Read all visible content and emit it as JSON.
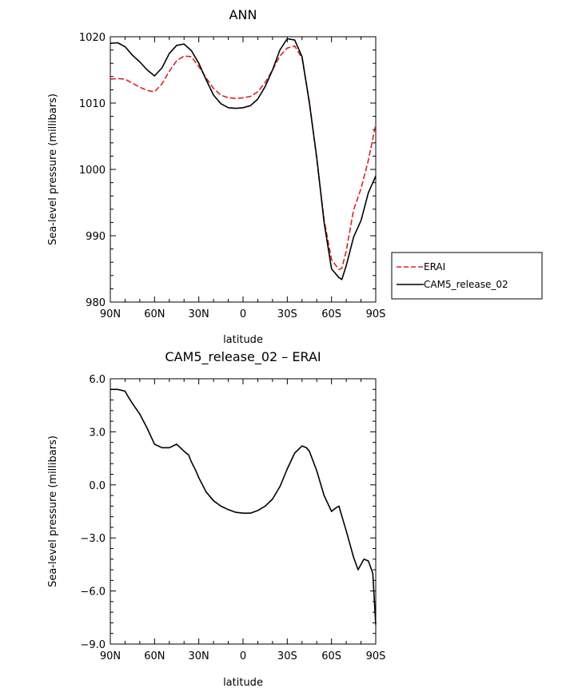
{
  "chart_data": [
    {
      "type": "line",
      "title": "ANN",
      "xlabel": "latitude",
      "ylabel": "Sea-level pressure (millibars)",
      "xlim": [
        90,
        -90
      ],
      "ylim": [
        980,
        1020
      ],
      "x_ticks": [
        90,
        60,
        30,
        0,
        -30,
        -60,
        -90
      ],
      "x_tick_labels": [
        "90N",
        "60N",
        "30N",
        "0",
        "30S",
        "60S",
        "90S"
      ],
      "y_ticks": [
        980,
        990,
        1000,
        1010,
        1020
      ],
      "y_tick_labels": [
        "980",
        "990",
        "1000",
        "1010",
        "1020"
      ],
      "series": [
        {
          "name": "ERAI",
          "color": "#e02020",
          "dashed": true,
          "x": [
            90,
            85,
            80,
            75,
            70,
            65,
            60,
            55,
            50,
            45,
            40,
            35,
            30,
            25,
            20,
            15,
            10,
            5,
            0,
            -5,
            -10,
            -15,
            -20,
            -25,
            -30,
            -35,
            -40,
            -45,
            -50,
            -55,
            -60,
            -65,
            -67,
            -70,
            -75,
            -80,
            -85,
            -90
          ],
          "y": [
            1013.6,
            1013.7,
            1013.6,
            1013.0,
            1012.4,
            1011.9,
            1011.7,
            1012.9,
            1014.8,
            1016.4,
            1017.1,
            1017.0,
            1015.5,
            1013.8,
            1012.2,
            1011.2,
            1010.8,
            1010.7,
            1010.8,
            1011.0,
            1011.7,
            1013.1,
            1015.0,
            1017.1,
            1018.3,
            1018.6,
            1016.8,
            1010.2,
            1001.6,
            992.4,
            986.4,
            984.9,
            985.1,
            987.7,
            993.9,
            997.1,
            1001.4,
            1006.8
          ]
        },
        {
          "name": "CAM5_release_02",
          "color": "#000000",
          "dashed": false,
          "x": [
            90,
            85,
            80,
            75,
            70,
            65,
            60,
            55,
            50,
            45,
            40,
            35,
            30,
            25,
            20,
            15,
            10,
            5,
            0,
            -5,
            -10,
            -15,
            -20,
            -25,
            -30,
            -35,
            -40,
            -45,
            -50,
            -55,
            -60,
            -65,
            -67,
            -70,
            -75,
            -80,
            -85,
            -90
          ],
          "y": [
            1019.0,
            1019.1,
            1018.5,
            1017.2,
            1016.2,
            1015.0,
            1014.1,
            1015.3,
            1017.5,
            1018.7,
            1018.9,
            1017.9,
            1016.0,
            1013.5,
            1011.2,
            1009.9,
            1009.3,
            1009.2,
            1009.3,
            1009.6,
            1010.6,
            1012.5,
            1015.0,
            1018.0,
            1019.7,
            1019.5,
            1017.0,
            1010.0,
            1001.8,
            992.0,
            985.0,
            983.7,
            983.4,
            985.5,
            989.8,
            992.3,
            996.5,
            999.0
          ]
        }
      ],
      "legend": {
        "placement": "right",
        "entries": [
          "ERAI",
          "CAM5_release_02"
        ]
      }
    },
    {
      "type": "line",
      "title": "CAM5_release_02 – ERAI",
      "xlabel": "latitude",
      "ylabel": "Sea-level pressure (millibars)",
      "xlim": [
        90,
        -90
      ],
      "ylim": [
        -9,
        6
      ],
      "x_ticks": [
        90,
        60,
        30,
        0,
        -30,
        -60,
        -90
      ],
      "x_tick_labels": [
        "90N",
        "60N",
        "30N",
        "0",
        "30S",
        "60S",
        "90S"
      ],
      "y_ticks": [
        -9,
        -6,
        -3,
        0,
        3,
        6
      ],
      "y_tick_labels": [
        "−9.0",
        "−6.0",
        "−3.0",
        "0.0",
        "3.0",
        "6.0"
      ],
      "series": [
        {
          "name": "CAM5_release_02 – ERAI",
          "color": "#000000",
          "dashed": false,
          "x": [
            90,
            85,
            80,
            78,
            75,
            70,
            65,
            60,
            55,
            50,
            45,
            40,
            37,
            35,
            32,
            30,
            25,
            20,
            15,
            10,
            5,
            0,
            -5,
            -10,
            -15,
            -20,
            -25,
            -30,
            -35,
            -40,
            -43,
            -45,
            -50,
            -55,
            -60,
            -63,
            -65,
            -70,
            -75,
            -78,
            -82,
            -85,
            -88,
            -90
          ],
          "y": [
            5.4,
            5.4,
            5.3,
            5.0,
            4.6,
            4.0,
            3.2,
            2.3,
            2.1,
            2.1,
            2.3,
            1.9,
            1.7,
            1.3,
            0.8,
            0.4,
            -0.4,
            -0.9,
            -1.2,
            -1.4,
            -1.55,
            -1.6,
            -1.6,
            -1.45,
            -1.2,
            -0.8,
            -0.1,
            0.9,
            1.8,
            2.2,
            2.1,
            1.9,
            0.8,
            -0.6,
            -1.5,
            -1.3,
            -1.2,
            -2.6,
            -4.1,
            -4.8,
            -4.2,
            -4.3,
            -5.0,
            -7.9
          ]
        }
      ]
    }
  ]
}
